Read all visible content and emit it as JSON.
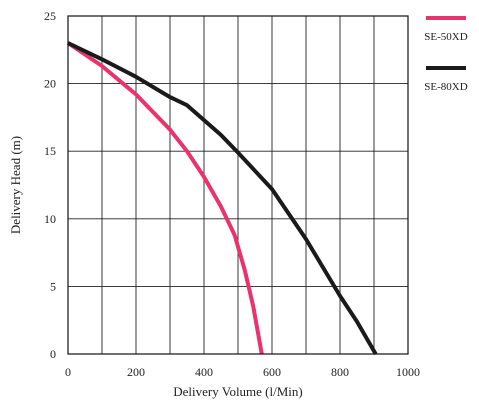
{
  "chart_data": {
    "type": "line",
    "xlabel": "Delivery Volume (l/Min)",
    "ylabel": "Delivery Head (m)",
    "xlim": [
      0,
      1000
    ],
    "ylim": [
      0,
      25
    ],
    "x_ticks": [
      0,
      200,
      400,
      600,
      800,
      1000
    ],
    "x_tick_labels": [
      "0",
      "200",
      "400",
      "600",
      "800",
      "1000"
    ],
    "y_ticks": [
      0,
      5,
      10,
      15,
      20,
      25
    ],
    "y_tick_labels": [
      "0",
      "5",
      "10",
      "15",
      "20",
      "25"
    ],
    "grid": true,
    "grid_x_step": 100,
    "grid_y_step": 5,
    "legend_position": "right",
    "series": [
      {
        "name": "SE-50XD",
        "color": "#e8336d",
        "points": [
          [
            0,
            23
          ],
          [
            100,
            21.3
          ],
          [
            200,
            19.2
          ],
          [
            300,
            16.6
          ],
          [
            350,
            15
          ],
          [
            400,
            13.1
          ],
          [
            450,
            10.9
          ],
          [
            490,
            8.8
          ],
          [
            520,
            6.2
          ],
          [
            545,
            3.5
          ],
          [
            570,
            0
          ]
        ]
      },
      {
        "name": "SE-80XD",
        "color": "#1a1a1a",
        "points": [
          [
            0,
            23
          ],
          [
            100,
            21.8
          ],
          [
            200,
            20.5
          ],
          [
            300,
            19
          ],
          [
            350,
            18.4
          ],
          [
            400,
            17.3
          ],
          [
            450,
            16.2
          ],
          [
            500,
            14.9
          ],
          [
            600,
            12.2
          ],
          [
            700,
            8.5
          ],
          [
            800,
            4.3
          ],
          [
            850,
            2.4
          ],
          [
            905,
            0
          ]
        ]
      }
    ]
  }
}
